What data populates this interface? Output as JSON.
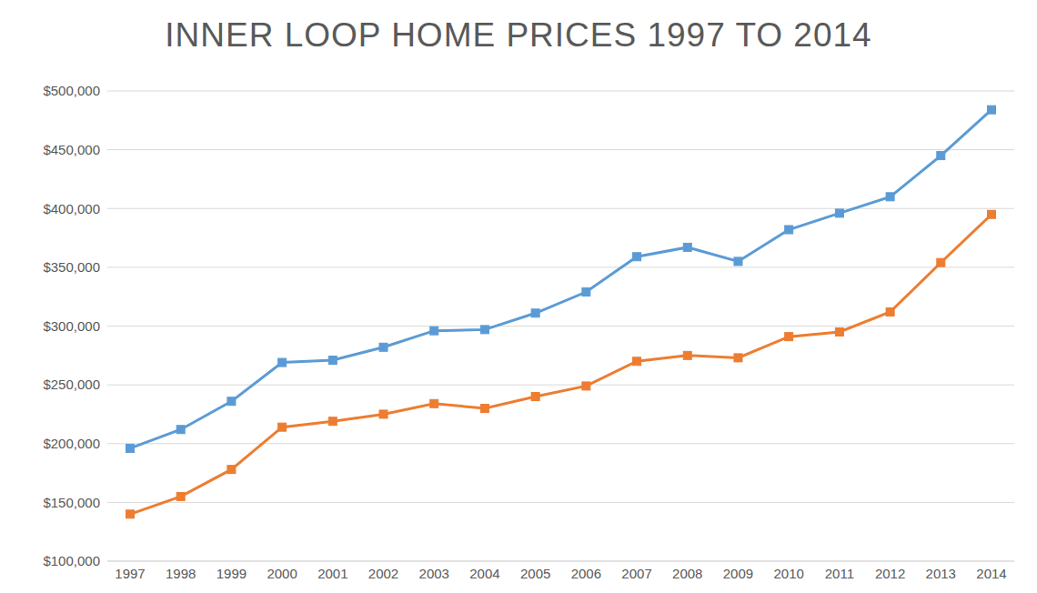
{
  "chart_data": {
    "type": "line",
    "title": "INNER LOOP HOME PRICES 1997 TO 2014",
    "categories": [
      "1997",
      "1998",
      "1999",
      "2000",
      "2001",
      "2002",
      "2003",
      "2004",
      "2005",
      "2006",
      "2007",
      "2008",
      "2009",
      "2010",
      "2011",
      "2012",
      "2013",
      "2014"
    ],
    "series": [
      {
        "color": "#5b9bd5",
        "marker": "square",
        "line_style": "solid",
        "values": [
          196000,
          212000,
          236000,
          269000,
          271000,
          282000,
          296000,
          297000,
          311000,
          329000,
          359000,
          367000,
          355000,
          382000,
          396000,
          410000,
          445000,
          484000
        ]
      },
      {
        "color": "#ed7d31",
        "marker": "square",
        "line_style": "solid",
        "values": [
          140000,
          155000,
          178000,
          214000,
          219000,
          225000,
          234000,
          230000,
          240000,
          249000,
          270000,
          275000,
          273000,
          291000,
          295000,
          312000,
          354000,
          395000
        ]
      }
    ],
    "ylim": [
      100000,
      500000
    ],
    "yticks": [
      {
        "value": 100000,
        "label": "$100,000"
      },
      {
        "value": 150000,
        "label": "$150,000"
      },
      {
        "value": 200000,
        "label": "$200,000"
      },
      {
        "value": 250000,
        "label": "$250,000"
      },
      {
        "value": 300000,
        "label": "$300,000"
      },
      {
        "value": 350000,
        "label": "$350,000"
      },
      {
        "value": 400000,
        "label": "$400,000"
      },
      {
        "value": 450000,
        "label": "$450,000"
      },
      {
        "value": 500000,
        "label": "$500,000"
      }
    ],
    "grid": true
  }
}
